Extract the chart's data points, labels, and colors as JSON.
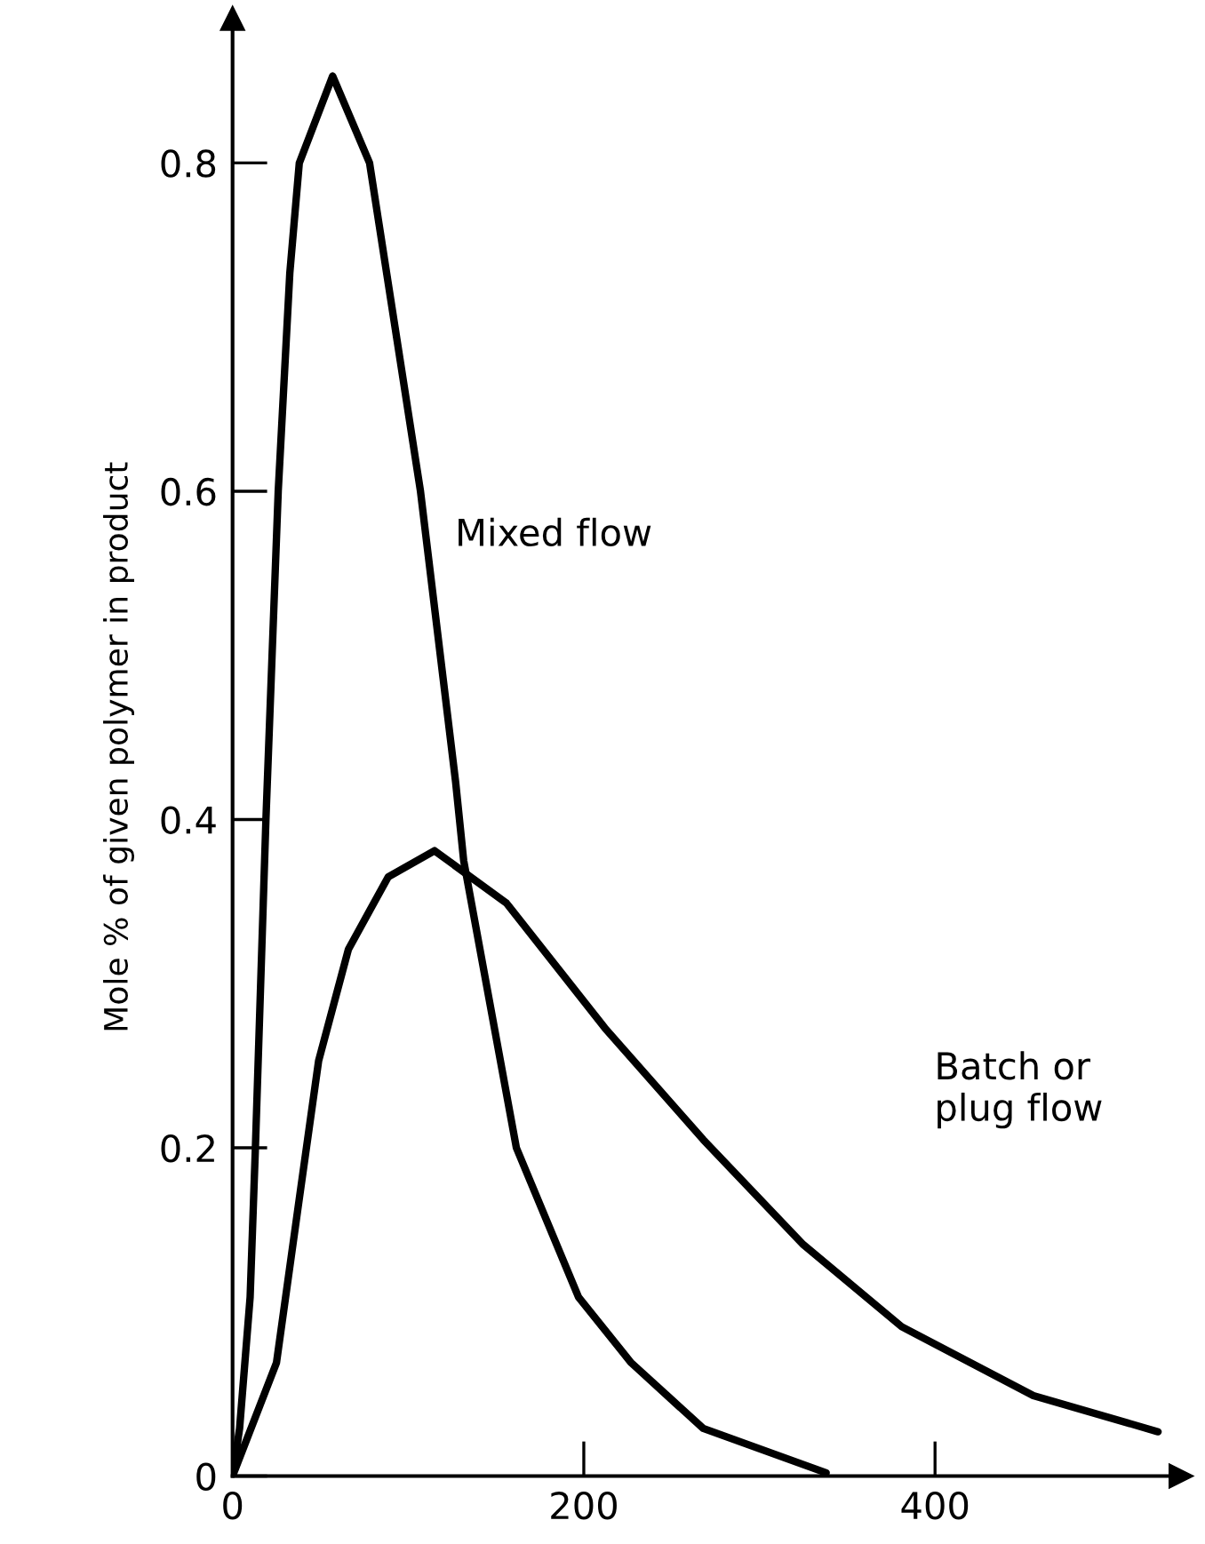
{
  "chart_data": {
    "type": "line",
    "ylabel": "Mole % of given polymer in product",
    "series": [
      {
        "color": "#000000",
        "x": [
          0,
          4,
          10,
          13,
          19,
          26,
          32.6,
          38,
          57,
          78,
          107,
          127,
          131.6,
          161.6,
          197,
          227,
          268,
          338
        ],
        "values": [
          0,
          0.029,
          0.109,
          0.2,
          0.4,
          0.6,
          0.733,
          0.8,
          0.853,
          0.8,
          0.6,
          0.423,
          0.375,
          0.2,
          0.109,
          0.069,
          0.029,
          0.002
        ]
      },
      {
        "color": "#000000",
        "x": [
          0,
          25,
          38,
          49,
          66,
          88.6,
          115,
          156,
          212,
          268,
          325,
          381,
          456,
          527
        ],
        "values": [
          0,
          0.069,
          0.169,
          0.253,
          0.321,
          0.365,
          0.381,
          0.349,
          0.273,
          0.205,
          0.141,
          0.091,
          0.049,
          0.027
        ]
      }
    ],
    "annotations": [
      {
        "text": "Mixed flow",
        "x": 107,
        "y": 0.6
      },
      "Batch or\nplug flow"
    ],
    "xlim": [
      0,
      540
    ],
    "ylim": [
      0,
      0.888
    ],
    "xticks": [
      0,
      200,
      400
    ],
    "yticks": [
      0,
      {
        "value": 0.2,
        "label": "0.2"
      },
      {
        "value": 0.4,
        "label": "0.4"
      },
      {
        "value": 0.6,
        "label": "0.6"
      },
      {
        "value": 0.8,
        "label": "0.8"
      }
    ],
    "grid": false,
    "legend": false,
    "marker": "none",
    "line_style": "solid"
  }
}
